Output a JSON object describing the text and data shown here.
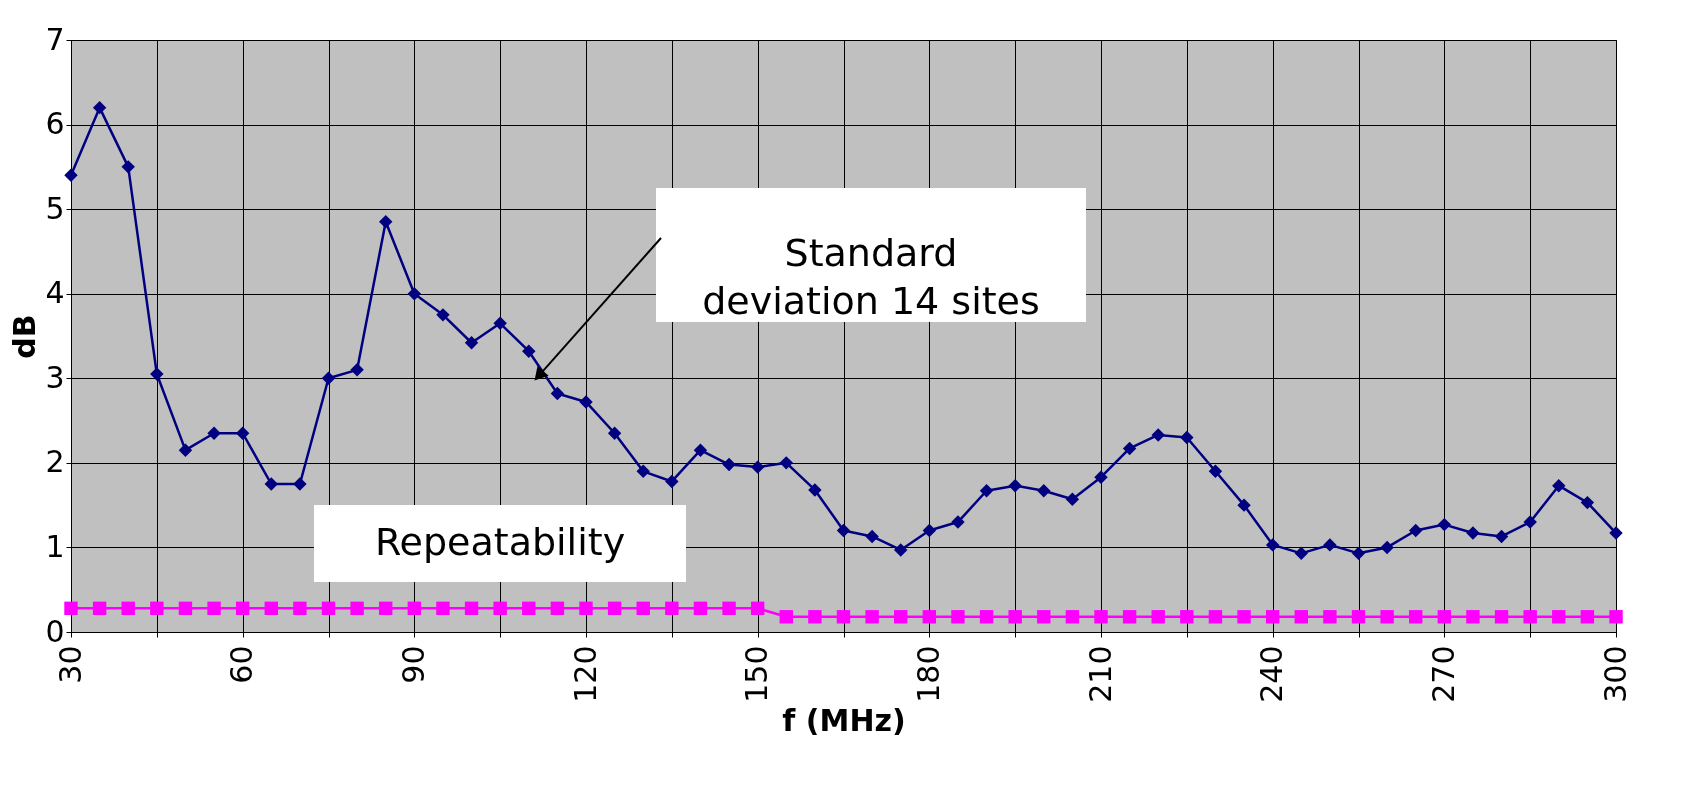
{
  "chart_data": {
    "type": "line",
    "xlabel": "f (MHz)",
    "ylabel": "dB",
    "x": [
      30,
      35,
      40,
      45,
      50,
      55,
      60,
      65,
      70,
      75,
      80,
      85,
      90,
      95,
      100,
      105,
      110,
      115,
      120,
      125,
      130,
      135,
      140,
      145,
      150,
      155,
      160,
      165,
      170,
      175,
      180,
      185,
      190,
      195,
      200,
      205,
      210,
      215,
      220,
      225,
      230,
      235,
      240,
      245,
      250,
      255,
      260,
      265,
      270,
      275,
      280,
      285,
      290,
      295,
      300
    ],
    "series": [
      {
        "color": "#000080",
        "marker": "diamond",
        "values": [
          5.4,
          6.2,
          5.5,
          3.05,
          2.15,
          2.35,
          2.35,
          1.75,
          1.75,
          3.0,
          3.1,
          4.85,
          4.0,
          3.75,
          3.42,
          3.65,
          3.32,
          2.82,
          2.72,
          2.35,
          1.9,
          1.78,
          2.15,
          1.98,
          1.95,
          2.0,
          1.68,
          1.2,
          1.13,
          0.97,
          1.2,
          1.3,
          1.67,
          1.73,
          1.67,
          1.57,
          1.83,
          2.17,
          2.33,
          2.3,
          1.9,
          1.5,
          1.03,
          0.93,
          1.03,
          0.93,
          1.0,
          1.2,
          1.27,
          1.17,
          1.13,
          1.3,
          1.73,
          1.53,
          1.17
        ]
      },
      {
        "color": "#ff00ff",
        "marker": "square",
        "values": [
          0.28,
          0.28,
          0.28,
          0.28,
          0.28,
          0.28,
          0.28,
          0.28,
          0.28,
          0.28,
          0.28,
          0.28,
          0.28,
          0.28,
          0.28,
          0.28,
          0.28,
          0.28,
          0.28,
          0.28,
          0.28,
          0.28,
          0.28,
          0.28,
          0.28,
          0.18,
          0.18,
          0.18,
          0.18,
          0.18,
          0.18,
          0.18,
          0.18,
          0.18,
          0.18,
          0.18,
          0.18,
          0.18,
          0.18,
          0.18,
          0.18,
          0.18,
          0.18,
          0.18,
          0.18,
          0.18,
          0.18,
          0.18,
          0.18,
          0.18,
          0.18,
          0.18,
          0.18,
          0.18,
          0.18
        ]
      }
    ],
    "annotations": [
      {
        "text": "Standard\ndeviation  14 sites",
        "x": 112,
        "y": 3.05
      },
      "Repeatability"
    ],
    "xlim": [
      30,
      300
    ],
    "xticks": [
      30,
      {
        "value": 45,
        "label": null
      },
      60,
      {
        "value": 75,
        "label": null
      },
      90,
      {
        "value": 105,
        "label": null
      },
      120,
      {
        "value": 135,
        "label": null
      },
      150,
      {
        "value": 165,
        "label": null
      },
      180,
      {
        "value": 195,
        "label": null
      },
      210,
      {
        "value": 225,
        "label": null
      },
      240,
      {
        "value": 255,
        "label": null
      },
      270,
      {
        "value": 285,
        "label": null
      },
      300
    ],
    "ylim": [
      0,
      7
    ],
    "yticks": [
      0,
      1,
      2,
      3,
      4,
      5,
      6,
      7
    ],
    "grid": true,
    "line_style": "solid"
  }
}
